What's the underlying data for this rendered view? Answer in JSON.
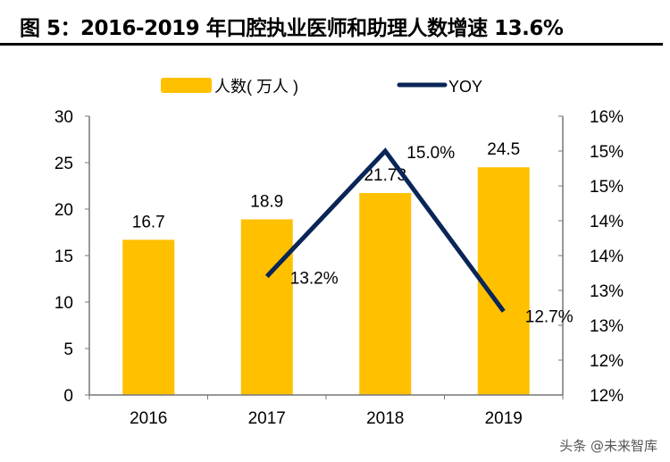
{
  "title": "图 5：2016-2019 年口腔执业医师和助理人数增速 13.6%",
  "watermark": "头条 @未来智库",
  "chart_data": {
    "type": "bar+line",
    "categories": [
      "2016",
      "2017",
      "2018",
      "2019"
    ],
    "series": [
      {
        "name": "人数（万人）",
        "type": "bar",
        "axis": "left",
        "values": [
          16.7,
          18.9,
          21.73,
          24.5
        ],
        "labels": [
          "16.7",
          "18.9",
          "21.73",
          "24.5"
        ],
        "color": "#FFC000"
      },
      {
        "name": "YOY",
        "type": "line",
        "axis": "right",
        "values": [
          null,
          13.2,
          15.0,
          12.7
        ],
        "labels": [
          "",
          "13.2%",
          "15.0%",
          "12.7%"
        ],
        "color": "#0A2557"
      }
    ],
    "left_axis": {
      "ylim": [
        0,
        30
      ],
      "ticks": [
        "0",
        "5",
        "10",
        "15",
        "20",
        "25",
        "30"
      ]
    },
    "right_axis": {
      "ylim": [
        11.5,
        15.5
      ],
      "ticks": [
        "12%",
        "12%",
        "13%",
        "13%",
        "14%",
        "14%",
        "15%",
        "15%",
        "16%"
      ]
    },
    "legend_position": "top",
    "grid": false
  }
}
